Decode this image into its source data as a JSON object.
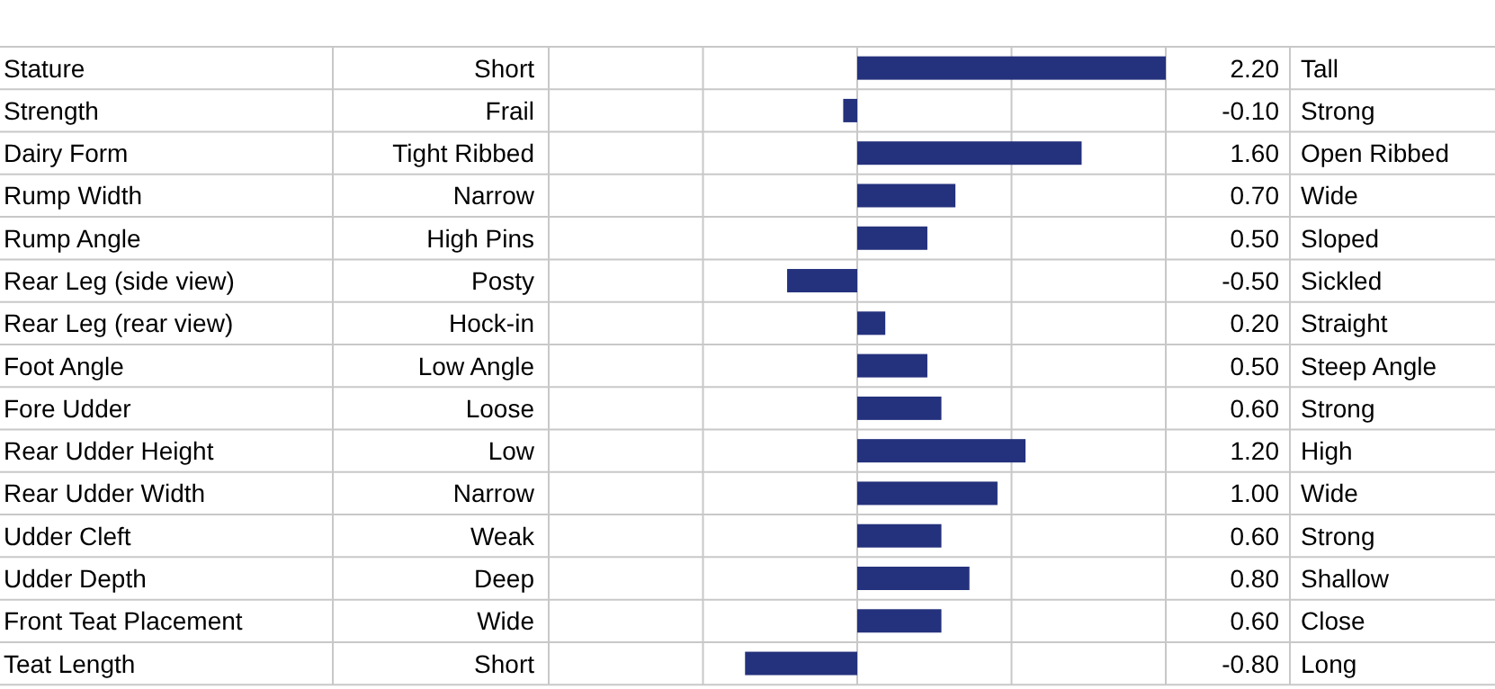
{
  "chart_data": {
    "type": "bar",
    "orientation": "horizontal",
    "data_labels": true,
    "grid": "x",
    "color": "#24317c",
    "categories": [
      "Stature",
      "Strength",
      "Dairy Form",
      "Rump Width",
      "Rump Angle",
      "Rear Leg (side view)",
      "Rear Leg (rear view)",
      "Foot Angle",
      "Fore Udder",
      "Rear Udder Height",
      "Rear Udder Width",
      "Udder Cleft",
      "Udder Depth",
      "Front Teat Placement",
      "Teat Length"
    ],
    "values": [
      2.2,
      -0.1,
      1.6,
      0.7,
      0.5,
      -0.5,
      0.2,
      0.5,
      0.6,
      1.2,
      1.0,
      0.6,
      0.8,
      0.6,
      -0.8
    ],
    "value_labels": [
      "2.20",
      "-0.10",
      "1.60",
      "0.70",
      "0.50",
      "-0.50",
      "0.20",
      "0.50",
      "0.60",
      "1.20",
      "1.00",
      "0.60",
      "0.80",
      "0.60",
      "-0.80"
    ],
    "xlim": [
      -2.2,
      2.2
    ],
    "xticks": [
      {
        "value": -2.2,
        "label": null
      },
      {
        "value": -1.1,
        "label": null
      },
      {
        "value": 0,
        "label": null
      },
      {
        "value": 1.1,
        "label": null
      },
      {
        "value": 2.2,
        "label": null
      }
    ],
    "annotations": [
      "Short",
      "Tall",
      "Frail",
      "Strong",
      "Tight Ribbed",
      "Open Ribbed",
      "Narrow",
      "Wide",
      "High Pins",
      "Sloped",
      "Posty",
      "Sickled",
      "Hock-in",
      "Straight",
      "Low Angle",
      "Steep Angle",
      "Loose",
      "Strong",
      "Low",
      "High",
      "Narrow",
      "Wide",
      "Weak",
      "Strong",
      "Deep",
      "Shallow",
      "Wide",
      "Close",
      "Short",
      "Long"
    ]
  }
}
